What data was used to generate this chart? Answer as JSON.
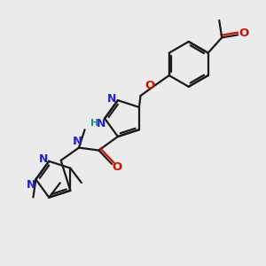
{
  "background_color": "#ebebeb",
  "bond_color": "#1a1a1a",
  "n_color": "#2020cc",
  "o_color": "#cc1100",
  "h_color": "#228888",
  "figsize": [
    3.0,
    3.0
  ],
  "dpi": 100,
  "xlim": [
    0,
    10
  ],
  "ylim": [
    0,
    10
  ]
}
